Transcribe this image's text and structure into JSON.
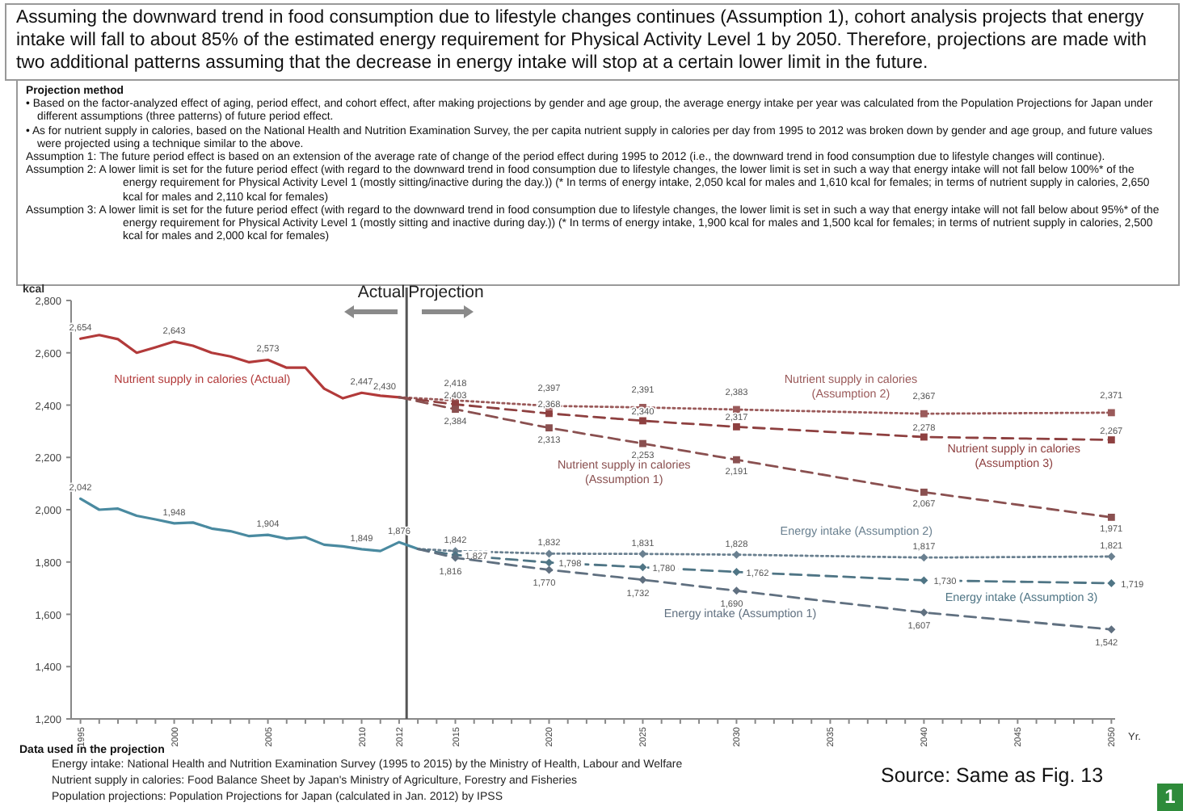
{
  "chart_data": {
    "type": "line",
    "title": "Assuming the downward trend in food consumption due to lifestyle changes continues (Assumption 1), cohort analysis projects that energy intake will fall to about 85% of the estimated energy requirement for Physical Activity Level 1 by 2050. Therefore, projections are made with two additional patterns assuming that the decrease in energy intake will stop at a certain lower limit in the future.",
    "ylabel": "kcal",
    "xlabel": "Yr.",
    "xlim": [
      1994.5,
      2050.2
    ],
    "xticks": [
      1995,
      {
        "value": 1996,
        "label": null
      },
      {
        "value": 1997,
        "label": null
      },
      {
        "value": 1998,
        "label": null
      },
      {
        "value": 1999,
        "label": null
      },
      2000,
      {
        "value": 2001,
        "label": null
      },
      {
        "value": 2002,
        "label": null
      },
      {
        "value": 2003,
        "label": null
      },
      {
        "value": 2004,
        "label": null
      },
      2005,
      {
        "value": 2006,
        "label": null
      },
      {
        "value": 2007,
        "label": null
      },
      {
        "value": 2008,
        "label": null
      },
      {
        "value": 2009,
        "label": null
      },
      2010,
      {
        "value": 2011,
        "label": null
      },
      2012,
      {
        "value": 2013,
        "label": null
      },
      {
        "value": 2014,
        "label": null
      },
      2015,
      {
        "value": 2016,
        "label": null
      },
      {
        "value": 2017,
        "label": null
      },
      {
        "value": 2018,
        "label": null
      },
      {
        "value": 2019,
        "label": null
      },
      2020,
      {
        "value": 2021,
        "label": null
      },
      {
        "value": 2022,
        "label": null
      },
      {
        "value": 2023,
        "label": null
      },
      {
        "value": 2024,
        "label": null
      },
      2025,
      {
        "value": 2026,
        "label": null
      },
      {
        "value": 2027,
        "label": null
      },
      {
        "value": 2028,
        "label": null
      },
      {
        "value": 2029,
        "label": null
      },
      2030,
      {
        "value": 2031,
        "label": null
      },
      {
        "value": 2032,
        "label": null
      },
      {
        "value": 2033,
        "label": null
      },
      {
        "value": 2034,
        "label": null
      },
      2035,
      {
        "value": 2036,
        "label": null
      },
      {
        "value": 2037,
        "label": null
      },
      {
        "value": 2038,
        "label": null
      },
      {
        "value": 2039,
        "label": null
      },
      2040,
      {
        "value": 2041,
        "label": null
      },
      {
        "value": 2042,
        "label": null
      },
      {
        "value": 2043,
        "label": null
      },
      {
        "value": 2044,
        "label": null
      },
      2045,
      {
        "value": 2046,
        "label": null
      },
      {
        "value": 2047,
        "label": null
      },
      {
        "value": 2048,
        "label": null
      },
      {
        "value": 2049,
        "label": null
      },
      2050
    ],
    "ylim": [
      1200,
      2800
    ],
    "yticks": [
      {
        "value": 1200,
        "label": "1,200"
      },
      {
        "value": 1400,
        "label": "1,400"
      },
      {
        "value": 1600,
        "label": "1,600"
      },
      {
        "value": 1800,
        "label": "1,800"
      },
      {
        "value": 2000,
        "label": "2,000"
      },
      {
        "value": 2200,
        "label": "2,200"
      },
      {
        "value": 2400,
        "label": "2,400"
      },
      {
        "value": 2600,
        "label": "2,600"
      },
      {
        "value": 2800,
        "label": "2,800"
      }
    ],
    "grid": false,
    "marker": "square",
    "series": [
      {
        "name": "Nutrient supply in calories (Actual)",
        "color": "#b23a3a",
        "line_style": "solid",
        "marker": "none",
        "x": [
          1995,
          1996,
          1997,
          1998,
          1999,
          2000,
          2001,
          2002,
          2003,
          2004,
          2005,
          2006,
          2007,
          2008,
          2009,
          2010,
          2011,
          2012
        ],
        "values": [
          2654,
          2668,
          2652,
          2600,
          2621,
          2643,
          2627,
          2600,
          2586,
          2564,
          2573,
          2543,
          2543,
          2463,
          2426,
          2447,
          2436,
          2430
        ],
        "value_labels": [
          "2,654",
          null,
          null,
          null,
          null,
          "2,643",
          null,
          null,
          null,
          null,
          "2,573",
          null,
          null,
          null,
          null,
          "2,447",
          null,
          "2,430"
        ]
      },
      {
        "name": "Nutrient supply in calories (Assumption 2)",
        "color": "#9a5a5a",
        "line_style": "dotted",
        "x": [
          2012,
          2015,
          2020,
          2025,
          2030,
          2040,
          2050
        ],
        "values": [
          2430,
          2418,
          2397,
          2391,
          2383,
          2367,
          2371
        ],
        "value_labels": [
          null,
          "2,418",
          "2,397",
          "2,391",
          "2,383",
          "2,367",
          "2,371"
        ]
      },
      {
        "name": "Nutrient supply in calories (Assumption 3)",
        "color": "#8e4040",
        "line_style": "dashed",
        "x": [
          2012,
          2015,
          2020,
          2025,
          2030,
          2040,
          2050
        ],
        "values": [
          2430,
          2403,
          2368,
          2340,
          2317,
          2278,
          2267
        ],
        "value_labels": [
          null,
          "2,403",
          "2,368",
          "2,340",
          "2,317",
          "2,278",
          "2,267"
        ]
      },
      {
        "name": "Nutrient supply in calories (Assumption 1)",
        "color": "#8a5050",
        "line_style": "dashed",
        "x": [
          2012,
          2015,
          2020,
          2025,
          2030,
          2040,
          2050
        ],
        "values": [
          2430,
          2384,
          2313,
          2253,
          2191,
          2067,
          1971
        ],
        "value_labels": [
          null,
          "2,384",
          "2,313",
          "2,253",
          "2,191",
          "2,067",
          "1,971"
        ]
      },
      {
        "color": "#4a8aa0",
        "line_style": "solid",
        "marker": "none",
        "x": [
          1995,
          1996,
          1997,
          1998,
          1999,
          2000,
          2001,
          2002,
          2003,
          2004,
          2005,
          2006,
          2007,
          2008,
          2009,
          2010,
          2011,
          2012,
          2013
        ],
        "values": [
          2042,
          2000,
          2004,
          1977,
          1963,
          1948,
          1951,
          1928,
          1918,
          1899,
          1904,
          1889,
          1895,
          1866,
          1860,
          1849,
          1842,
          1876,
          1850
        ],
        "value_labels": [
          "2,042",
          null,
          null,
          null,
          null,
          "1,948",
          null,
          null,
          null,
          null,
          "1,904",
          null,
          null,
          null,
          null,
          "1,849",
          null,
          "1,876",
          null
        ]
      },
      {
        "name": "Energy intake (Assumption 2)",
        "color": "#6a8090",
        "line_style": "dotted",
        "marker": "diamond",
        "x": [
          2013,
          2015,
          2020,
          2025,
          2030,
          2040,
          2050
        ],
        "values": [
          1850,
          1842,
          1832,
          1831,
          1828,
          1817,
          1821
        ],
        "value_labels": [
          null,
          "1,842",
          "1,832",
          "1,831",
          "1,828",
          "1,817",
          "1,821"
        ]
      },
      {
        "name": "Energy intake (Assumption 3)",
        "color": "#4f7585",
        "line_style": "dashed",
        "marker": "diamond",
        "x": [
          2013,
          2015,
          2020,
          2025,
          2030,
          2040,
          2050
        ],
        "values": [
          1850,
          1827,
          1798,
          1780,
          1762,
          1730,
          1719
        ],
        "value_labels": [
          null,
          "1,827",
          "1,798",
          "1,780",
          "1,762",
          "1,730",
          "1,719"
        ]
      },
      {
        "name": "Energy intake (Assumption 1)",
        "color": "#607080",
        "line_style": "dashed",
        "marker": "diamond",
        "x": [
          2013,
          2015,
          2020,
          2025,
          2030,
          2040,
          2050
        ],
        "values": [
          1850,
          1816,
          1770,
          1732,
          1690,
          1607,
          1542
        ],
        "value_labels": [
          null,
          "1,816",
          "1,770",
          "1,732",
          "1,690",
          "1,607",
          "1,542"
        ]
      }
    ],
    "ref_lines": [
      {
        "axis": "x",
        "value": 2012.4,
        "color": "#555555"
      }
    ],
    "annotations": [
      "Projection method",
      "• Based on the factor-analyzed effect of aging, period effect, and cohort effect, after making projections by gender and age group, the average energy intake per year was calculated from the Population Projections for Japan under different assumptions (three patterns) of future period effect.",
      "• As for nutrient supply in calories, based on the National Health and Nutrition Examination Survey, the per capita nutrient supply in calories per day from 1995 to 2012 was broken down by gender and age group, and future values were projected using a technique similar to the above.",
      "Assumption 1: The future period effect is based on an extension of the average rate of change of the period effect during 1995 to 2012 (i.e., the downward trend in food consumption due to lifestyle changes will continue).",
      "Assumption 2: A lower limit is set for the future period effect (with regard to the downward trend in food consumption due to lifestyle changes, the lower limit is set in such a way that energy intake will not fall below 100%* of the energy requirement for Physical Activity Level 1 (mostly sitting/inactive during the day.)) (* In terms of energy intake, 2,050 kcal for males and 1,610 kcal for females; in terms of nutrient supply in calories, 2,650 kcal for males and 2,110 kcal for females)",
      "Assumption 3: A lower limit is set for the future period effect (with regard to the downward trend in food consumption due to lifestyle changes, the lower limit is set in such a way that energy intake will not fall below about 95%* of the energy requirement for Physical Activity Level 1 (mostly sitting and inactive during day.)) (* In terms of energy intake, 1,900 kcal for males and 1,500 kcal for females; in terms of nutrient supply in calories, 2,500 kcal for males and 2,000 kcal for females)",
      "Actual",
      "Projection",
      "Data used in the projection",
      "Energy intake: National Health and Nutrition Examination Survey (1995 to 2015) by the Ministry of Health, Labour and Welfare",
      "Nutrient supply in calories: Food Balance Sheet by Japan's Ministry of Agriculture, Forestry and Fisheries",
      "Population projections: Population Projections for Japan (calculated in Jan. 2012) by IPSS",
      "Source: Same as Fig. 13",
      "1"
    ]
  }
}
